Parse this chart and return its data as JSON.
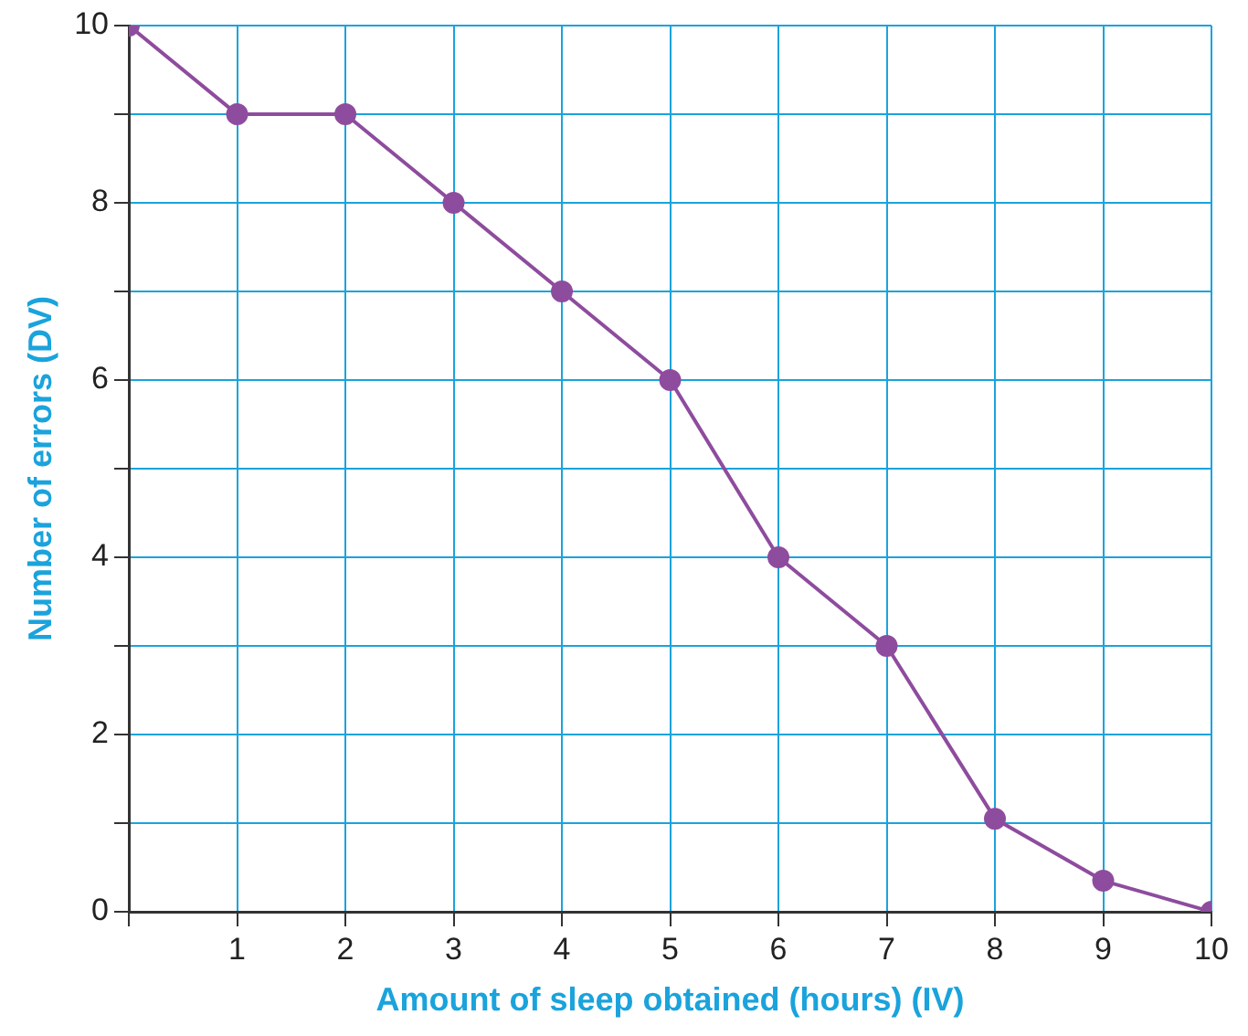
{
  "chart_data": {
    "type": "line",
    "xlabel": "Amount of sleep obtained (hours) (IV)",
    "ylabel": "Number of errors (DV)",
    "x": [
      0,
      1,
      2,
      3,
      4,
      5,
      6,
      7,
      8,
      9,
      10
    ],
    "series": [
      {
        "color": "#8e4c9e",
        "values": [
          10,
          9,
          9,
          8,
          7,
          6,
          4,
          3,
          1.05,
          0.35,
          0
        ]
      }
    ],
    "xlim": [
      0,
      10
    ],
    "ylim": [
      0,
      10
    ],
    "xticks": [
      {
        "value": 0,
        "label": null
      },
      1,
      2,
      3,
      4,
      5,
      6,
      7,
      8,
      9,
      10
    ],
    "yticks": [
      0,
      {
        "value": 1,
        "label": null
      },
      2,
      {
        "value": 3,
        "label": null
      },
      4,
      {
        "value": 5,
        "label": null
      },
      6,
      {
        "value": 7,
        "label": null
      },
      8,
      {
        "value": 9,
        "label": null
      },
      10
    ],
    "grid": true,
    "legend": false,
    "marker": "circle",
    "line_style": "solid"
  }
}
